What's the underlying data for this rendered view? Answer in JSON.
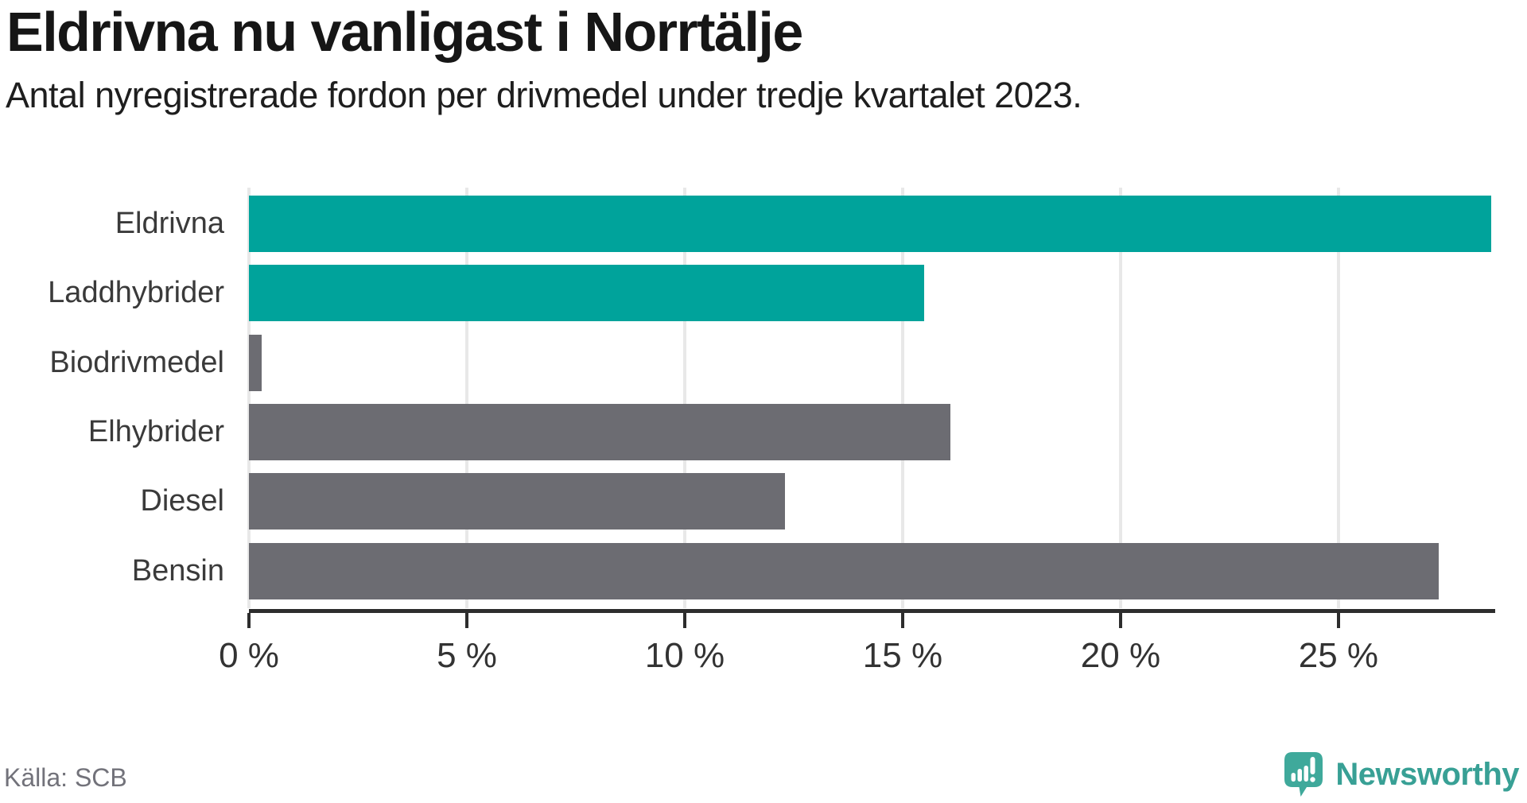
{
  "header": {
    "title": "Eldrivna nu vanligast i Norrtälje",
    "subtitle": "Antal nyregistrerade fordon per drivmedel under tredje kvartalet 2023."
  },
  "chart_data": {
    "type": "bar",
    "orientation": "horizontal",
    "title": "Eldrivna nu vanligast i Norrtälje",
    "subtitle": "Antal nyregistrerade fordon per drivmedel under tredje kvartalet 2023.",
    "categories": [
      "Eldrivna",
      "Laddhybrider",
      "Biodrivmedel",
      "Elhybrider",
      "Diesel",
      "Bensin"
    ],
    "values": [
      28.5,
      15.5,
      0.3,
      16.1,
      12.3,
      27.3
    ],
    "unit": "%",
    "xlabel": "",
    "ylabel": "",
    "xlim": [
      0,
      28.56
    ],
    "xticks": {
      "values": [
        0,
        5,
        10,
        15,
        20,
        25
      ],
      "labels": [
        "0 %",
        "5 %",
        "10 %",
        "15 %",
        "20 %",
        "25 %"
      ]
    },
    "grid": "vertical-only",
    "legend": "none",
    "bar_colors": [
      "#00a39b",
      "#00a39b",
      "#6c6c72",
      "#6c6c72",
      "#6c6c72",
      "#6c6c72"
    ],
    "colors": {
      "highlight": "#00a39b",
      "default": "#6c6c72",
      "gridline": "#e8e8e8",
      "axis": "#2d2d2d"
    }
  },
  "footer": {
    "source": "Källa: SCB",
    "brand": "Newsworthy",
    "brand_color": "#38a095"
  }
}
